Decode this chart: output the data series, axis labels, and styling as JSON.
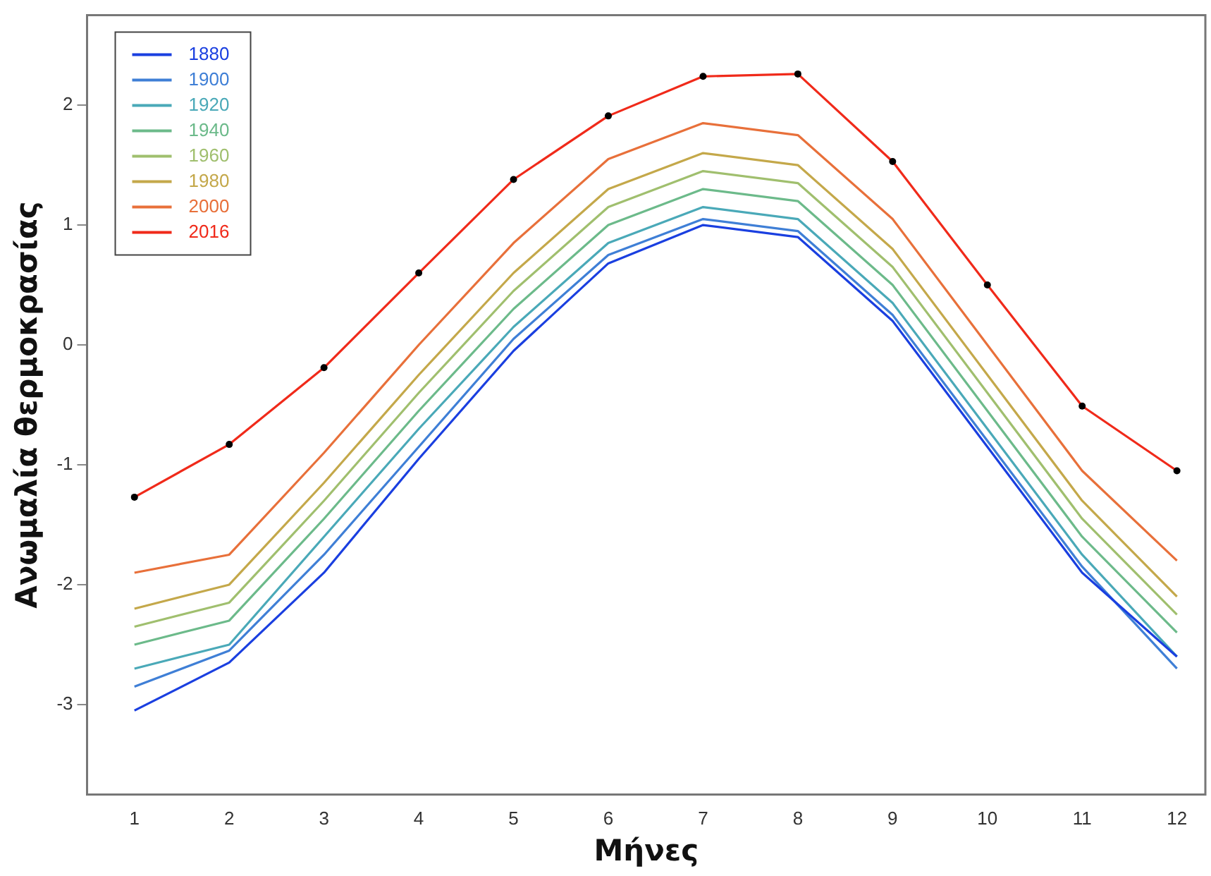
{
  "chart_data": {
    "type": "line",
    "xlabel": "Μήνες",
    "ylabel": "Ανωμαλία θερμοκρασίας",
    "x": [
      1,
      2,
      3,
      4,
      5,
      6,
      7,
      8,
      9,
      10,
      11,
      12
    ],
    "xlim": [
      0.5,
      12.3
    ],
    "xticks": [
      1,
      2,
      3,
      4,
      5,
      6,
      7,
      8,
      9,
      10,
      11,
      12
    ],
    "ylim": [
      -3.75,
      2.75
    ],
    "yticks": [
      -3,
      -2,
      -1,
      0,
      1,
      2
    ],
    "grid": false,
    "legend": "top left",
    "marker": "none",
    "line_style": "solid",
    "series": [
      {
        "name": "1880",
        "color": "#1a3fe0",
        "values": [
          -3.05,
          -2.65,
          -1.9,
          -0.95,
          -0.05,
          0.68,
          1.0,
          0.9,
          0.2,
          -0.85,
          -1.9,
          -2.6
        ]
      },
      {
        "name": "1900",
        "color": "#3f7fd6",
        "values": [
          -2.85,
          -2.55,
          -1.75,
          -0.85,
          0.05,
          0.75,
          1.05,
          0.95,
          0.25,
          -0.8,
          -1.85,
          -2.7
        ]
      },
      {
        "name": "1920",
        "color": "#4aa9b8",
        "values": [
          -2.7,
          -2.5,
          -1.6,
          -0.7,
          0.15,
          0.85,
          1.15,
          1.05,
          0.35,
          -0.7,
          -1.75,
          -2.6
        ]
      },
      {
        "name": "1940",
        "color": "#6cba8a",
        "values": [
          -2.5,
          -2.3,
          -1.45,
          -0.55,
          0.3,
          1.0,
          1.3,
          1.2,
          0.5,
          -0.55,
          -1.6,
          -2.4
        ]
      },
      {
        "name": "1960",
        "color": "#a0bf6e",
        "values": [
          -2.35,
          -2.15,
          -1.3,
          -0.4,
          0.45,
          1.15,
          1.45,
          1.35,
          0.65,
          -0.4,
          -1.45,
          -2.25
        ]
      },
      {
        "name": "1980",
        "color": "#c4a84a",
        "values": [
          -2.2,
          -2.0,
          -1.15,
          -0.25,
          0.6,
          1.3,
          1.6,
          1.5,
          0.8,
          -0.25,
          -1.3,
          -2.1
        ]
      },
      {
        "name": "2000",
        "color": "#e8703a",
        "values": [
          -1.9,
          -1.75,
          -0.9,
          0.0,
          0.85,
          1.55,
          1.85,
          1.75,
          1.05,
          0.0,
          -1.05,
          -1.8
        ]
      },
      {
        "name": "2016",
        "color": "#f02a1a",
        "marker": "circle",
        "values": [
          -1.27,
          -0.83,
          -0.19,
          0.6,
          1.38,
          1.91,
          2.24,
          2.26,
          1.53,
          0.5,
          -0.51,
          -1.05
        ]
      }
    ]
  }
}
